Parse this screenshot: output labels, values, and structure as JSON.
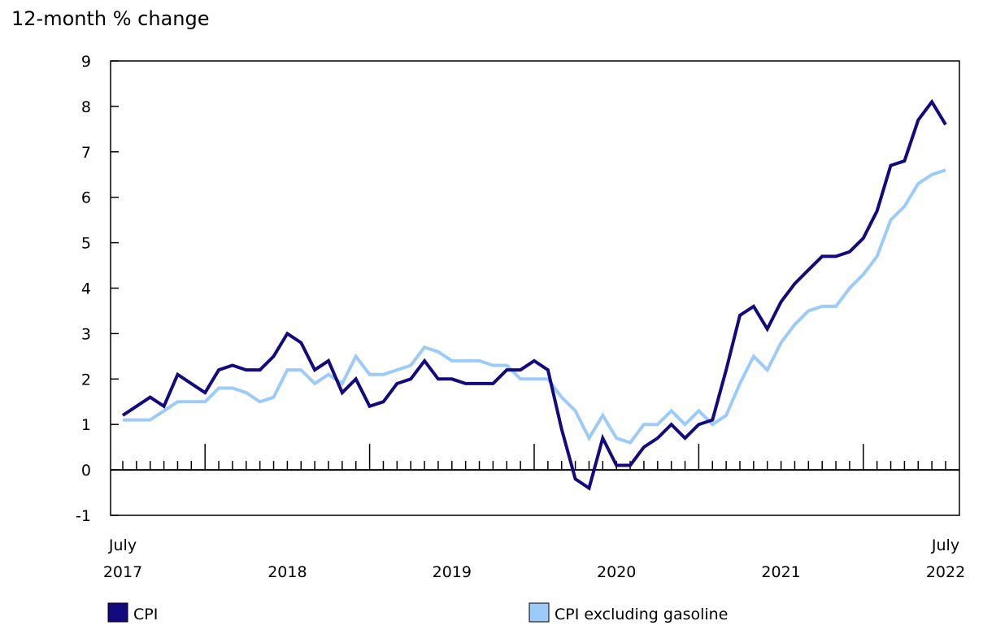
{
  "chart_data": {
    "type": "line",
    "ylabel": "12-month % change",
    "ylim": [
      -1,
      9
    ],
    "yticks": [
      -1,
      0,
      1,
      2,
      3,
      4,
      5,
      6,
      7,
      8,
      9
    ],
    "x_start": "July 2017",
    "x_end": "July 2022",
    "x_labels": [
      {
        "month_index": 0,
        "line1": "July",
        "line2": "2017"
      },
      {
        "month_index": 12,
        "line1": "",
        "line2": "2018"
      },
      {
        "month_index": 24,
        "line1": "",
        "line2": "2019"
      },
      {
        "month_index": 36,
        "line1": "",
        "line2": "2020"
      },
      {
        "month_index": 48,
        "line1": "",
        "line2": "2021"
      },
      {
        "month_index": 60,
        "line1": "July",
        "line2": "2022"
      }
    ],
    "grid": false,
    "legend_position": "bottom",
    "series": [
      {
        "name": "CPI",
        "color": "#120a7d",
        "values": [
          1.2,
          1.4,
          1.6,
          1.4,
          2.1,
          1.9,
          1.7,
          2.2,
          2.3,
          2.2,
          2.2,
          2.5,
          3.0,
          2.8,
          2.2,
          2.4,
          1.7,
          2.0,
          1.4,
          1.5,
          1.9,
          2.0,
          2.4,
          2.0,
          2.0,
          1.9,
          1.9,
          1.9,
          2.2,
          2.2,
          2.4,
          2.2,
          0.9,
          -0.2,
          -0.4,
          0.7,
          0.1,
          0.1,
          0.5,
          0.7,
          1.0,
          0.7,
          1.0,
          1.1,
          2.2,
          3.4,
          3.6,
          3.1,
          3.7,
          4.1,
          4.4,
          4.7,
          4.7,
          4.8,
          5.1,
          5.7,
          6.7,
          6.8,
          7.7,
          8.1,
          7.6
        ]
      },
      {
        "name": "CPI excluding gasoline",
        "color": "#9ccbfa",
        "values": [
          1.1,
          1.1,
          1.1,
          1.3,
          1.5,
          1.5,
          1.5,
          1.8,
          1.8,
          1.7,
          1.5,
          1.6,
          2.2,
          2.2,
          1.9,
          2.1,
          1.9,
          2.5,
          2.1,
          2.1,
          2.2,
          2.3,
          2.7,
          2.6,
          2.4,
          2.4,
          2.4,
          2.3,
          2.3,
          2.0,
          2.0,
          2.0,
          1.6,
          1.3,
          0.7,
          1.2,
          0.7,
          0.6,
          1.0,
          1.0,
          1.3,
          1.0,
          1.3,
          1.0,
          1.2,
          1.9,
          2.5,
          2.2,
          2.8,
          3.2,
          3.5,
          3.6,
          3.6,
          4.0,
          4.3,
          4.7,
          5.5,
          5.8,
          6.3,
          6.5,
          6.6
        ]
      }
    ]
  }
}
